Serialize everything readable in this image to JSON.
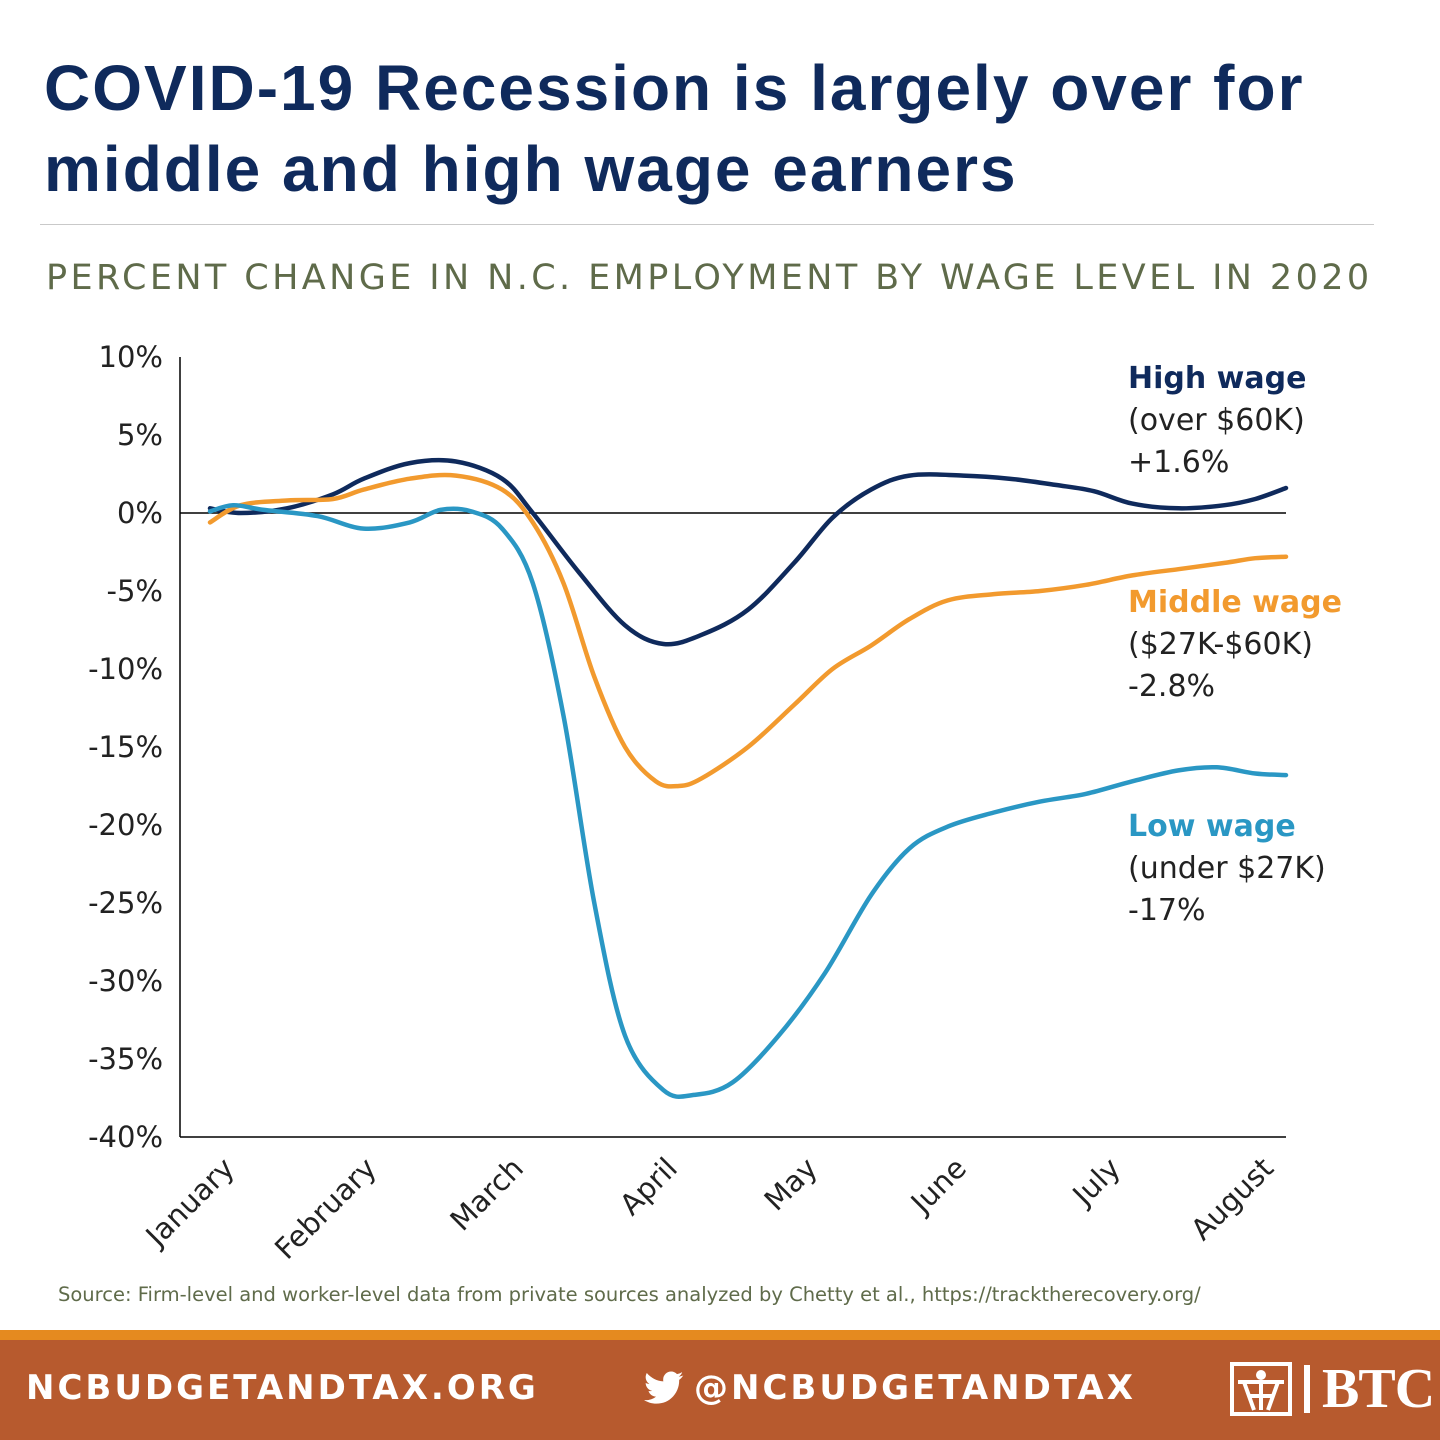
{
  "title": "COVID-19 Recession is largely over for middle and high wage earners",
  "subtitle": "PERCENT CHANGE IN N.C. EMPLOYMENT BY WAGE LEVEL IN 2020",
  "source": "Source: Firm-level and worker-level data from private sources analyzed by Chetty et al., https://tracktherecovery.org/",
  "footer": {
    "website": "NCBUDGETANDTAX.ORG",
    "twitter": "@NCBUDGETANDTAX",
    "logo_text": "BTC",
    "twitter_icon": "twitter-bird-icon",
    "logo_icon": "btc-logo-icon",
    "stripe_color": "#e58a1f",
    "background_color": "#b75a2e"
  },
  "chart_data": {
    "type": "line",
    "title": "",
    "xlabel": "",
    "ylabel": "",
    "x_ticks": [
      "January",
      "February",
      "March",
      "April",
      "May",
      "June",
      "July",
      "August"
    ],
    "x_range": [
      0,
      7
    ],
    "y_ticks": [
      10,
      5,
      0,
      -5,
      -10,
      -15,
      -20,
      -25,
      -30,
      -35,
      -40
    ],
    "y_tick_labels": [
      "10%",
      "5%",
      "0%",
      "-5%",
      "-10%",
      "-15%",
      "-20%",
      "-25%",
      "-30%",
      "-35%",
      "-40%"
    ],
    "ylim": [
      -40,
      10
    ],
    "grid": false,
    "zero_line": true,
    "series": [
      {
        "name": "High wage",
        "label_lines": [
          "High wage",
          "(over $60K)",
          "+1.6%"
        ],
        "color": "#0f2a5c",
        "points": [
          [
            0.0,
            0.3
          ],
          [
            0.2,
            0.0
          ],
          [
            0.5,
            0.3
          ],
          [
            0.8,
            1.2
          ],
          [
            1.0,
            2.2
          ],
          [
            1.3,
            3.2
          ],
          [
            1.6,
            3.3
          ],
          [
            1.9,
            2.2
          ],
          [
            2.1,
            0.0
          ],
          [
            2.4,
            -3.8
          ],
          [
            2.7,
            -7.2
          ],
          [
            2.95,
            -8.4
          ],
          [
            3.2,
            -7.8
          ],
          [
            3.5,
            -6.2
          ],
          [
            3.8,
            -3.2
          ],
          [
            4.05,
            -0.3
          ],
          [
            4.3,
            1.5
          ],
          [
            4.55,
            2.4
          ],
          [
            4.9,
            2.4
          ],
          [
            5.2,
            2.2
          ],
          [
            5.5,
            1.8
          ],
          [
            5.75,
            1.4
          ],
          [
            6.0,
            0.6
          ],
          [
            6.3,
            0.3
          ],
          [
            6.6,
            0.5
          ],
          [
            6.8,
            0.9
          ],
          [
            7.0,
            1.6
          ]
        ]
      },
      {
        "name": "Middle wage",
        "label_lines": [
          "Middle wage",
          "($27K-$60K)",
          "-2.8%"
        ],
        "color": "#f29a2e",
        "points": [
          [
            0.0,
            -0.6
          ],
          [
            0.2,
            0.5
          ],
          [
            0.5,
            0.8
          ],
          [
            0.8,
            0.9
          ],
          [
            1.0,
            1.5
          ],
          [
            1.3,
            2.2
          ],
          [
            1.6,
            2.4
          ],
          [
            1.9,
            1.5
          ],
          [
            2.1,
            -0.6
          ],
          [
            2.3,
            -4.5
          ],
          [
            2.5,
            -10.5
          ],
          [
            2.7,
            -15.0
          ],
          [
            2.9,
            -17.2
          ],
          [
            3.05,
            -17.5
          ],
          [
            3.2,
            -17.0
          ],
          [
            3.5,
            -15.0
          ],
          [
            3.8,
            -12.3
          ],
          [
            4.05,
            -10.0
          ],
          [
            4.3,
            -8.5
          ],
          [
            4.55,
            -6.8
          ],
          [
            4.8,
            -5.6
          ],
          [
            5.1,
            -5.2
          ],
          [
            5.4,
            -5.0
          ],
          [
            5.7,
            -4.6
          ],
          [
            6.0,
            -4.0
          ],
          [
            6.3,
            -3.6
          ],
          [
            6.6,
            -3.2
          ],
          [
            6.8,
            -2.9
          ],
          [
            7.0,
            -2.8
          ]
        ]
      },
      {
        "name": "Low wage",
        "label_lines": [
          "Low wage",
          "(under $27K)",
          "-17%"
        ],
        "color": "#2a97c4",
        "points": [
          [
            0.0,
            0.1
          ],
          [
            0.15,
            0.5
          ],
          [
            0.35,
            0.2
          ],
          [
            0.7,
            -0.2
          ],
          [
            1.0,
            -1.0
          ],
          [
            1.3,
            -0.6
          ],
          [
            1.5,
            0.2
          ],
          [
            1.7,
            0.1
          ],
          [
            1.9,
            -1.0
          ],
          [
            2.1,
            -4.5
          ],
          [
            2.3,
            -13.0
          ],
          [
            2.5,
            -25.0
          ],
          [
            2.7,
            -33.5
          ],
          [
            2.95,
            -37.0
          ],
          [
            3.15,
            -37.3
          ],
          [
            3.4,
            -36.5
          ],
          [
            3.7,
            -33.5
          ],
          [
            4.0,
            -29.5
          ],
          [
            4.3,
            -24.5
          ],
          [
            4.55,
            -21.5
          ],
          [
            4.8,
            -20.1
          ],
          [
            5.1,
            -19.2
          ],
          [
            5.4,
            -18.5
          ],
          [
            5.7,
            -18.0
          ],
          [
            6.0,
            -17.2
          ],
          [
            6.3,
            -16.5
          ],
          [
            6.55,
            -16.3
          ],
          [
            6.8,
            -16.7
          ],
          [
            7.0,
            -16.8
          ]
        ]
      }
    ],
    "zero_line_color": "#000000",
    "axis_color": "#000000"
  }
}
